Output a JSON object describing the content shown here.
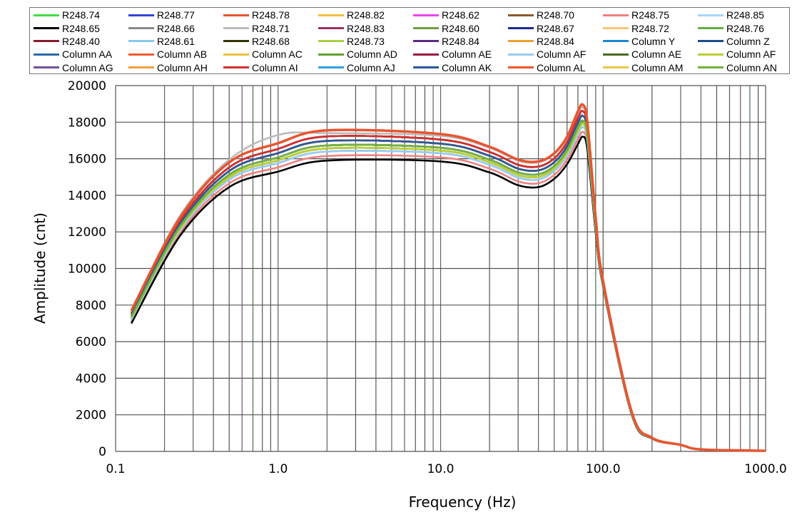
{
  "chart_data": {
    "type": "line",
    "title": "",
    "xlabel": "Frequency (Hz)",
    "ylabel": "Amplitude (cnt)",
    "xscale": "log",
    "xlim": [
      0.1,
      1000
    ],
    "ylim": [
      0,
      20000
    ],
    "grid": true,
    "legend_position": "top",
    "x_tick_labels": [
      "0.1",
      "1.0",
      "10.0",
      "100.0",
      "1000.0"
    ],
    "x_ticks": [
      0.1,
      1,
      10,
      100,
      1000
    ],
    "y_ticks": [
      0,
      2000,
      4000,
      6000,
      8000,
      10000,
      12000,
      14000,
      16000,
      18000,
      20000
    ],
    "y_tick_labels": [
      "0",
      "2000",
      "4000",
      "6000",
      "8000",
      "10000",
      "12000",
      "14000",
      "16000",
      "18000",
      "20000"
    ],
    "x": [
      0.125,
      0.25,
      0.5,
      1,
      2,
      10,
      20,
      30,
      40,
      50,
      60,
      70,
      75,
      80,
      90,
      100,
      150,
      200,
      300,
      400,
      1000
    ],
    "series": [
      {
        "name": "R248.74",
        "color": "#44dd44",
        "values": [
          7350,
          12300,
          15125,
          16075,
          16725,
          16600,
          15950,
          15250,
          15150,
          15600,
          16450,
          17700,
          18075,
          17250,
          12400,
          9150,
          2075,
          725,
          355,
          105,
          33
        ]
      },
      {
        "name": "R248.77",
        "color": "#3344dd",
        "values": [
          7455,
          12450,
          15328,
          16308,
          16973,
          16825,
          16160,
          15460,
          15360,
          15810,
          16675,
          17970,
          18338,
          17475,
          12520,
          9195,
          2098,
          733,
          357,
          107,
          33
        ]
      },
      {
        "name": "R248.78",
        "color": "#e85530",
        "values": [
          7700,
          12800,
          15800,
          16850,
          17550,
          17350,
          16650,
          15950,
          15850,
          16300,
          17200,
          18600,
          18950,
          18000,
          12800,
          9300,
          2150,
          750,
          360,
          110,
          35
        ]
      },
      {
        "name": "R248.82",
        "color": "#f0c040",
        "values": [
          7350,
          12300,
          15125,
          16075,
          16725,
          16600,
          15950,
          15250,
          15150,
          15600,
          16450,
          17700,
          18075,
          17250,
          12400,
          9150,
          2075,
          725,
          355,
          105,
          33
        ]
      },
      {
        "name": "R248.62",
        "color": "#ee44ee",
        "values": [
          7210,
          12100,
          14855,
          15765,
          16395,
          16300,
          15670,
          14970,
          14870,
          15320,
          16150,
          17340,
          17725,
          16950,
          12240,
          9090,
          2045,
          715,
          353,
          103,
          32
        ]
      },
      {
        "name": "R248.70",
        "color": "#8b5a2b",
        "values": [
          7350,
          12300,
          15125,
          16075,
          16725,
          16600,
          15950,
          15250,
          15150,
          15600,
          16450,
          17700,
          18075,
          17250,
          12400,
          9150,
          2075,
          725,
          355,
          105,
          33
        ]
      },
      {
        "name": "R248.75",
        "color": "#f08080",
        "values": [
          7105,
          11950,
          14653,
          15533,
          16148,
          16075,
          15460,
          14760,
          14660,
          15110,
          15925,
          17070,
          17463,
          16725,
          12120,
          9045,
          2023,
          708,
          352,
          102,
          31
        ]
      },
      {
        "name": "R248.85",
        "color": "#aad4f5",
        "values": [
          7210,
          12100,
          14855,
          15765,
          16395,
          16300,
          15670,
          14970,
          14870,
          15320,
          16150,
          17340,
          17725,
          16950,
          12240,
          9090,
          2045,
          715,
          353,
          103,
          32
        ]
      },
      {
        "name": "R248.65",
        "color": "#000000",
        "values": [
          7000,
          11800,
          14450,
          15300,
          15900,
          15850,
          15250,
          14550,
          14450,
          14900,
          15700,
          16800,
          17200,
          16500,
          12000,
          9000,
          2000,
          700,
          350,
          100,
          30
        ]
      },
      {
        "name": "R248.66",
        "color": "#888888",
        "values": [
          7455,
          12450,
          15328,
          16308,
          16973,
          16825,
          16160,
          15460,
          15360,
          15810,
          16675,
          17970,
          18338,
          17475,
          12520,
          9195,
          2098,
          733,
          357,
          107,
          33
        ]
      },
      {
        "name": "R248.71",
        "color": "#bbbbbb",
        "values": [
          7700,
          12900,
          15950,
          17300,
          17400,
          17250,
          16600,
          15900,
          15800,
          16250,
          17100,
          18450,
          18800,
          17900,
          12750,
          9280,
          2140,
          745,
          360,
          110,
          35
        ]
      },
      {
        "name": "R248.83",
        "color": "#a03060",
        "values": [
          7560,
          12600,
          15530,
          16540,
          17220,
          17050,
          16370,
          15670,
          15570,
          16020,
          16900,
          18240,
          18600,
          17700,
          12640,
          9240,
          2120,
          740,
          358,
          108,
          34
        ]
      },
      {
        "name": "R248.60",
        "color": "#70a040",
        "values": [
          7350,
          12300,
          15125,
          16075,
          16725,
          16600,
          15950,
          15250,
          15150,
          15600,
          16450,
          17700,
          18075,
          17250,
          12400,
          9150,
          2075,
          725,
          355,
          105,
          33
        ]
      },
      {
        "name": "R248.67",
        "color": "#1a2a90",
        "values": [
          7560,
          12600,
          15530,
          16540,
          17220,
          17050,
          16370,
          15670,
          15570,
          16020,
          16900,
          18240,
          18600,
          17700,
          12640,
          9240,
          2120,
          740,
          358,
          108,
          34
        ]
      },
      {
        "name": "R248.72",
        "color": "#f5c870",
        "values": [
          7280,
          12200,
          14990,
          15920,
          16560,
          16450,
          15810,
          15110,
          15010,
          15460,
          16300,
          17520,
          17900,
          17100,
          12320,
          9120,
          2060,
          720,
          354,
          104,
          32
        ]
      },
      {
        "name": "R248.76",
        "color": "#60b040",
        "values": [
          7350,
          12300,
          15125,
          16075,
          16725,
          16600,
          15950,
          15250,
          15150,
          15600,
          16450,
          17700,
          18075,
          17250,
          12400,
          9150,
          2075,
          725,
          355,
          105,
          33
        ]
      },
      {
        "name": "R248.40",
        "color": "#8b1a2a",
        "values": [
          7560,
          12600,
          15530,
          16540,
          17220,
          17050,
          16370,
          15670,
          15570,
          16020,
          16900,
          18240,
          18600,
          17700,
          12640,
          9240,
          2120,
          740,
          358,
          108,
          34
        ]
      },
      {
        "name": "R248.61",
        "color": "#88c8f0",
        "values": [
          7210,
          12100,
          14855,
          15765,
          16395,
          16300,
          15670,
          14970,
          14870,
          15320,
          16150,
          17340,
          17725,
          16950,
          12240,
          9090,
          2045,
          715,
          353,
          103,
          32
        ]
      },
      {
        "name": "R248.68",
        "color": "#333300",
        "values": [
          7280,
          12200,
          14990,
          15920,
          16560,
          16450,
          15810,
          15110,
          15010,
          15460,
          16300,
          17520,
          17900,
          17100,
          12320,
          9120,
          2060,
          720,
          354,
          104,
          32
        ]
      },
      {
        "name": "R248.73",
        "color": "#aad040",
        "values": [
          7350,
          12300,
          15125,
          16075,
          16725,
          16600,
          15950,
          15250,
          15150,
          15600,
          16450,
          17700,
          18075,
          17250,
          12400,
          9150,
          2075,
          725,
          355,
          105,
          33
        ]
      },
      {
        "name": "R248.84",
        "color": "#5a2a80",
        "values": [
          7455,
          12450,
          15328,
          16308,
          16973,
          16825,
          16160,
          15460,
          15360,
          15810,
          16675,
          17970,
          18338,
          17475,
          12520,
          9195,
          2098,
          733,
          357,
          107,
          33
        ]
      },
      {
        "name": "R248.84",
        "color": "#f0a030",
        "values": [
          7350,
          12300,
          15125,
          16075,
          16725,
          16600,
          15950,
          15250,
          15150,
          15600,
          16450,
          17700,
          18075,
          17250,
          12400,
          9150,
          2075,
          725,
          355,
          105,
          33
        ]
      },
      {
        "name": "Column Y",
        "color": "#1a88d0",
        "values": [
          7280,
          12200,
          14990,
          15920,
          16560,
          16450,
          15810,
          15110,
          15010,
          15460,
          16300,
          17520,
          17900,
          17100,
          12320,
          9120,
          2060,
          720,
          354,
          104,
          32
        ]
      },
      {
        "name": "Column Z",
        "color": "#1a4a90",
        "values": [
          7455,
          12450,
          15328,
          16308,
          16973,
          16825,
          16160,
          15460,
          15360,
          15810,
          16675,
          17970,
          18338,
          17475,
          12520,
          9195,
          2098,
          733,
          357,
          107,
          33
        ]
      },
      {
        "name": "Column AA",
        "color": "#2a6aa8",
        "values": [
          7350,
          12300,
          15125,
          16075,
          16725,
          16600,
          15950,
          15250,
          15150,
          15600,
          16450,
          17700,
          18075,
          17250,
          12400,
          9150,
          2075,
          725,
          355,
          105,
          33
        ]
      },
      {
        "name": "Column AB",
        "color": "#f05a30",
        "values": [
          7560,
          12600,
          15530,
          16540,
          17220,
          17050,
          16370,
          15670,
          15570,
          16020,
          16900,
          18240,
          18600,
          17700,
          12640,
          9240,
          2120,
          740,
          358,
          108,
          34
        ]
      },
      {
        "name": "Column AC",
        "color": "#f0c040",
        "values": [
          7280,
          12200,
          14990,
          15920,
          16560,
          16450,
          15810,
          15110,
          15010,
          15460,
          16300,
          17520,
          17900,
          17100,
          12320,
          9120,
          2060,
          720,
          354,
          104,
          32
        ]
      },
      {
        "name": "Column AD",
        "color": "#60a030",
        "values": [
          7350,
          12300,
          15125,
          16075,
          16725,
          16600,
          15950,
          15250,
          15150,
          15600,
          16450,
          17700,
          18075,
          17250,
          12400,
          9150,
          2075,
          725,
          355,
          105,
          33
        ]
      },
      {
        "name": "Column AE",
        "color": "#9a1a3a",
        "values": [
          7455,
          12450,
          15328,
          16308,
          16973,
          16825,
          16160,
          15460,
          15360,
          15810,
          16675,
          17970,
          18338,
          17475,
          12520,
          9195,
          2098,
          733,
          357,
          107,
          33
        ]
      },
      {
        "name": "Column AF",
        "color": "#99ccf5",
        "values": [
          7210,
          12100,
          14855,
          15765,
          16395,
          16300,
          15670,
          14970,
          14870,
          15320,
          16150,
          17340,
          17725,
          16950,
          12240,
          9090,
          2045,
          715,
          353,
          103,
          32
        ]
      },
      {
        "name": "Column AE",
        "color": "#4a6a20",
        "values": [
          7350,
          12300,
          15125,
          16075,
          16725,
          16600,
          15950,
          15250,
          15150,
          15600,
          16450,
          17700,
          18075,
          17250,
          12400,
          9150,
          2075,
          725,
          355,
          105,
          33
        ]
      },
      {
        "name": "Column AF",
        "color": "#bbd030",
        "values": [
          7280,
          12200,
          14990,
          15920,
          16560,
          16450,
          15810,
          15110,
          15010,
          15460,
          16300,
          17520,
          17900,
          17100,
          12320,
          9120,
          2060,
          720,
          354,
          104,
          32
        ]
      },
      {
        "name": "Column AG",
        "color": "#7050a0",
        "values": [
          7350,
          12300,
          15125,
          16075,
          16725,
          16600,
          15950,
          15250,
          15150,
          15600,
          16450,
          17700,
          18075,
          17250,
          12400,
          9150,
          2075,
          725,
          355,
          105,
          33
        ]
      },
      {
        "name": "Column AH",
        "color": "#f0a040",
        "values": [
          7455,
          12450,
          15328,
          16308,
          16973,
          16825,
          16160,
          15460,
          15360,
          15810,
          16675,
          17970,
          18338,
          17475,
          12520,
          9195,
          2098,
          733,
          357,
          107,
          33
        ]
      },
      {
        "name": "Column AI",
        "color": "#d03030",
        "values": [
          7560,
          12600,
          15530,
          16540,
          17220,
          17050,
          16370,
          15670,
          15570,
          16020,
          16900,
          18240,
          18600,
          17700,
          12640,
          9240,
          2120,
          740,
          358,
          108,
          34
        ]
      },
      {
        "name": "Column AJ",
        "color": "#30a0e0",
        "values": [
          7350,
          12300,
          15125,
          16075,
          16725,
          16600,
          15950,
          15250,
          15150,
          15600,
          16450,
          17700,
          18075,
          17250,
          12400,
          9150,
          2075,
          725,
          355,
          105,
          33
        ]
      },
      {
        "name": "Column AK",
        "color": "#2a5a98",
        "values": [
          7455,
          12450,
          15328,
          16308,
          16973,
          16825,
          16160,
          15460,
          15360,
          15810,
          16675,
          17970,
          18338,
          17475,
          12520,
          9195,
          2098,
          733,
          357,
          107,
          33
        ]
      },
      {
        "name": "Column AL",
        "color": "#f05530",
        "values": [
          7700,
          12800,
          15800,
          16850,
          17550,
          17350,
          16650,
          15950,
          15850,
          16300,
          17200,
          18600,
          18950,
          18000,
          12800,
          9300,
          2150,
          750,
          360,
          110,
          35
        ]
      },
      {
        "name": "Column AM",
        "color": "#e8c840",
        "values": [
          7350,
          12300,
          15125,
          16075,
          16725,
          16600,
          15950,
          15250,
          15150,
          15600,
          16450,
          17700,
          18075,
          17250,
          12400,
          9150,
          2075,
          725,
          355,
          105,
          33
        ]
      },
      {
        "name": "Column AN",
        "color": "#70b040",
        "values": [
          7350,
          12300,
          15125,
          16075,
          16725,
          16600,
          15950,
          15250,
          15150,
          15600,
          16450,
          17700,
          18075,
          17250,
          12400,
          9150,
          2075,
          725,
          355,
          105,
          33
        ]
      }
    ]
  }
}
